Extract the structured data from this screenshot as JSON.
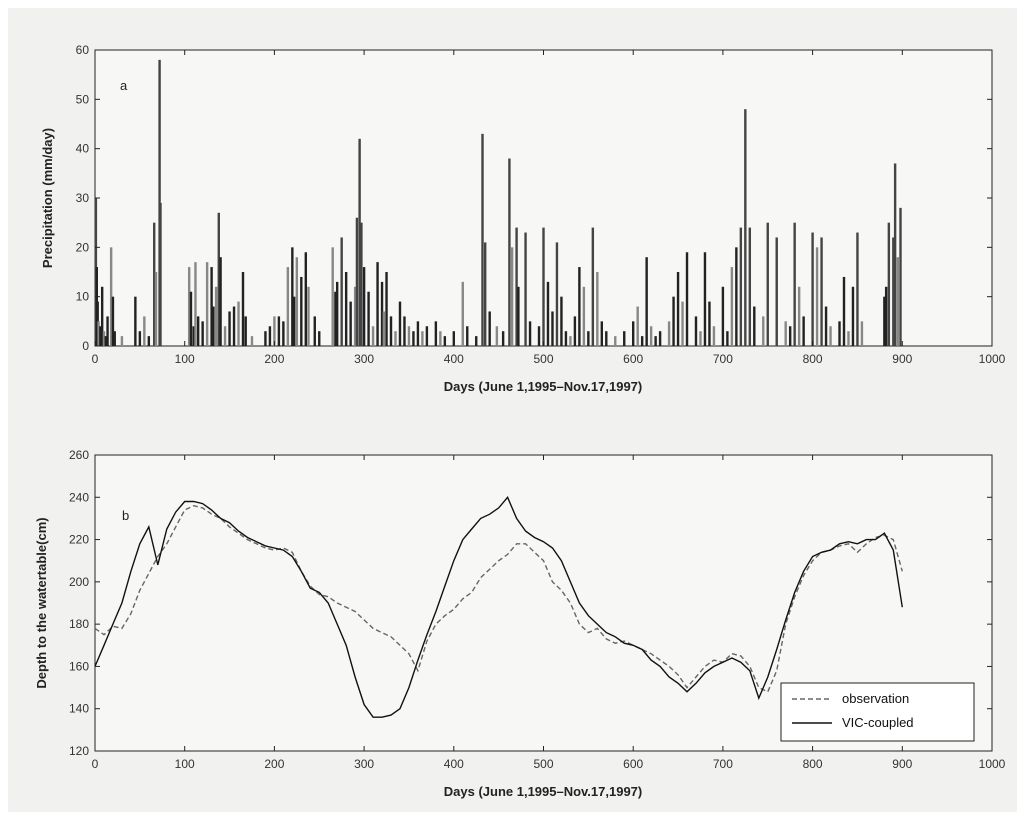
{
  "chart_data": [
    {
      "type": "bar",
      "panel_label": "a",
      "xlabel": "Days (June 1,1995–Nov.17,1997)",
      "ylabel": "Precipitation (mm/day)",
      "xlim": [
        0,
        1000
      ],
      "ylim": [
        0,
        60
      ],
      "xticks": [
        0,
        100,
        200,
        300,
        400,
        500,
        600,
        700,
        800,
        900,
        1000
      ],
      "yticks": [
        0,
        10,
        20,
        30,
        40,
        50,
        60
      ],
      "grid": false,
      "series": [
        {
          "x": [
            1,
            2,
            3,
            4,
            6,
            8,
            10,
            12,
            14,
            18,
            20,
            22,
            30,
            45,
            50,
            55,
            60,
            66,
            68,
            72,
            73,
            105,
            107,
            110,
            112,
            115,
            120,
            125,
            130,
            132,
            135,
            138,
            140,
            145,
            150,
            155,
            160,
            165,
            168,
            175,
            190,
            195,
            200,
            205,
            210,
            215,
            220,
            222,
            225,
            230,
            235,
            238,
            245,
            250,
            265,
            268,
            270,
            275,
            280,
            285,
            290,
            292,
            295,
            297,
            300,
            305,
            310,
            315,
            320,
            322,
            325,
            330,
            335,
            340,
            345,
            350,
            355,
            360,
            365,
            370,
            380,
            385,
            390,
            400,
            410,
            415,
            425,
            432,
            435,
            440,
            448,
            455,
            462,
            465,
            470,
            472,
            480,
            485,
            495,
            500,
            505,
            510,
            515,
            520,
            525,
            530,
            535,
            540,
            545,
            550,
            555,
            560,
            565,
            570,
            580,
            590,
            600,
            605,
            610,
            615,
            620,
            625,
            630,
            640,
            645,
            650,
            655,
            660,
            670,
            675,
            680,
            685,
            690,
            700,
            705,
            710,
            715,
            720,
            725,
            730,
            735,
            745,
            750,
            760,
            770,
            775,
            780,
            785,
            790,
            800,
            805,
            810,
            815,
            820,
            830,
            835,
            840,
            845,
            850,
            855,
            880,
            882,
            885,
            890,
            892,
            895,
            898
          ],
          "values": [
            30,
            16,
            9,
            5,
            4,
            12,
            3,
            2,
            6,
            20,
            10,
            3,
            2,
            10,
            3,
            6,
            2,
            25,
            15,
            58,
            29,
            16,
            11,
            4,
            17,
            6,
            5,
            17,
            16,
            8,
            12,
            27,
            18,
            4,
            7,
            8,
            9,
            15,
            6,
            2,
            3,
            4,
            6,
            6,
            5,
            16,
            20,
            10,
            18,
            14,
            19,
            12,
            6,
            3,
            20,
            11,
            13,
            22,
            15,
            9,
            12,
            26,
            42,
            25,
            16,
            11,
            4,
            17,
            13,
            7,
            15,
            6,
            3,
            9,
            6,
            4,
            3,
            5,
            3,
            4,
            5,
            3,
            2,
            3,
            13,
            4,
            2,
            43,
            21,
            7,
            4,
            3,
            38,
            20,
            24,
            12,
            23,
            5,
            4,
            24,
            13,
            7,
            21,
            10,
            3,
            2,
            6,
            16,
            12,
            3,
            24,
            15,
            5,
            3,
            2,
            3,
            5,
            8,
            2,
            18,
            4,
            2,
            3,
            5,
            10,
            15,
            9,
            19,
            6,
            3,
            19,
            9,
            4,
            12,
            3,
            16,
            20,
            24,
            48,
            24,
            8,
            6,
            25,
            22,
            5,
            4,
            25,
            12,
            6,
            23,
            20,
            22,
            8,
            4,
            5,
            14,
            3,
            12,
            23,
            5,
            10,
            12,
            25,
            22,
            37,
            18,
            28
          ]
        }
      ]
    },
    {
      "type": "line",
      "panel_label": "b",
      "xlabel": "Days (June 1,1995–Nov.17,1997)",
      "ylabel": "Depth to the watertable(cm)",
      "xlim": [
        0,
        1000
      ],
      "ylim": [
        120,
        260
      ],
      "xticks": [
        0,
        100,
        200,
        300,
        400,
        500,
        600,
        700,
        800,
        900,
        1000
      ],
      "yticks": [
        120,
        140,
        160,
        180,
        200,
        220,
        240,
        260
      ],
      "grid": false,
      "legend_position": "bottom-right",
      "series": [
        {
          "name": "observation",
          "style": "dashed",
          "x": [
            0,
            10,
            20,
            30,
            40,
            50,
            60,
            70,
            80,
            90,
            100,
            110,
            120,
            130,
            140,
            150,
            160,
            170,
            180,
            190,
            200,
            210,
            220,
            230,
            240,
            250,
            260,
            270,
            280,
            290,
            300,
            310,
            320,
            330,
            340,
            350,
            360,
            370,
            380,
            390,
            400,
            410,
            420,
            430,
            440,
            450,
            460,
            470,
            480,
            490,
            500,
            510,
            520,
            530,
            540,
            550,
            560,
            570,
            580,
            590,
            600,
            610,
            620,
            630,
            640,
            650,
            660,
            670,
            680,
            690,
            700,
            710,
            720,
            730,
            740,
            750,
            760,
            770,
            780,
            790,
            800,
            810,
            820,
            830,
            840,
            850,
            860,
            870,
            880,
            890,
            900
          ],
          "y": [
            178,
            175,
            179,
            178,
            185,
            196,
            204,
            212,
            218,
            226,
            234,
            236,
            235,
            232,
            230,
            226,
            223,
            220,
            218,
            216,
            215,
            216,
            214,
            205,
            198,
            194,
            193,
            190,
            188,
            186,
            182,
            178,
            176,
            174,
            170,
            166,
            158,
            172,
            180,
            184,
            187,
            192,
            195,
            202,
            206,
            210,
            213,
            218,
            218,
            214,
            210,
            200,
            196,
            190,
            180,
            176,
            178,
            173,
            171,
            172,
            170,
            168,
            166,
            163,
            160,
            156,
            150,
            155,
            160,
            163,
            162,
            166,
            165,
            160,
            150,
            148,
            158,
            180,
            193,
            203,
            210,
            214,
            215,
            217,
            218,
            214,
            218,
            221,
            222,
            220,
            205
          ]
        },
        {
          "name": "VIC-coupled",
          "style": "solid",
          "x": [
            0,
            10,
            20,
            30,
            40,
            50,
            60,
            70,
            80,
            90,
            100,
            110,
            120,
            130,
            140,
            150,
            160,
            170,
            180,
            190,
            200,
            210,
            220,
            230,
            240,
            250,
            260,
            270,
            280,
            290,
            300,
            310,
            320,
            330,
            340,
            350,
            360,
            370,
            380,
            390,
            400,
            410,
            420,
            430,
            440,
            450,
            460,
            470,
            480,
            490,
            500,
            510,
            520,
            530,
            540,
            550,
            560,
            570,
            580,
            590,
            600,
            610,
            620,
            630,
            640,
            650,
            660,
            670,
            680,
            690,
            700,
            710,
            720,
            730,
            740,
            750,
            760,
            770,
            780,
            790,
            800,
            810,
            820,
            830,
            840,
            850,
            860,
            870,
            880,
            890,
            900
          ],
          "y": [
            160,
            170,
            180,
            190,
            205,
            218,
            226,
            208,
            225,
            233,
            238,
            238,
            237,
            234,
            230,
            228,
            224,
            221,
            219,
            217,
            216,
            215,
            212,
            205,
            197,
            195,
            190,
            180,
            170,
            155,
            142,
            136,
            136,
            137,
            140,
            150,
            163,
            175,
            186,
            198,
            210,
            220,
            225,
            230,
            232,
            235,
            240,
            230,
            224,
            221,
            219,
            216,
            210,
            200,
            190,
            184,
            180,
            176,
            174,
            171,
            170,
            168,
            163,
            160,
            155,
            152,
            148,
            152,
            157,
            160,
            162,
            164,
            162,
            158,
            145,
            155,
            168,
            182,
            195,
            205,
            212,
            214,
            215,
            218,
            219,
            218,
            220,
            220,
            223,
            215,
            188
          ]
        }
      ]
    }
  ]
}
